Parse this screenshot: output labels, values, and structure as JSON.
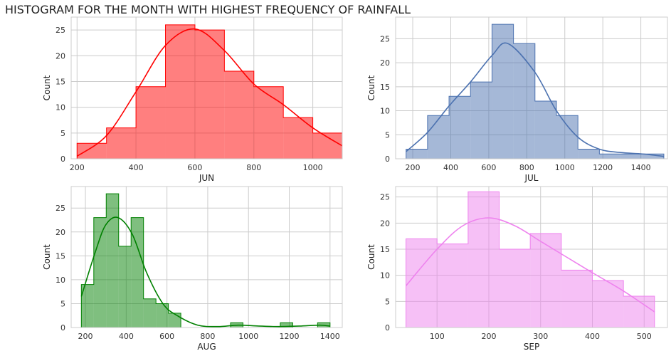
{
  "title": "HISTOGRAM FOR THE MONTH WITH HIGHEST FREQUENCY OF RAINFALL",
  "chart_data": [
    {
      "type": "bar",
      "subtype": "histogram",
      "xlabel": "JUN",
      "ylabel": "Count",
      "color": "#ff0000",
      "xlim": [
        180,
        1100
      ],
      "ylim": [
        0,
        27.5
      ],
      "xticks": [
        200,
        400,
        600,
        800,
        1000
      ],
      "yticks": [
        0,
        5,
        10,
        15,
        20,
        25
      ],
      "bin_edges": [
        200,
        300,
        400,
        500,
        600,
        700,
        800,
        900,
        1000,
        1100
      ],
      "counts": [
        3,
        6,
        14,
        26,
        25,
        17,
        14,
        8,
        5
      ],
      "kde": {
        "x": [
          200,
          300,
          400,
          500,
          600,
          700,
          800,
          900,
          1000,
          1100
        ],
        "y": [
          0.5,
          4.5,
          13,
          22,
          25.2,
          21,
          14.5,
          10.5,
          6,
          2.5
        ]
      },
      "grid": true
    },
    {
      "type": "bar",
      "subtype": "histogram",
      "xlabel": "JUL",
      "ylabel": "Count",
      "color": "#4c72b0",
      "xlim": [
        110,
        1540
      ],
      "ylim": [
        0,
        29.5
      ],
      "xticks": [
        200,
        400,
        600,
        800,
        1000,
        1200,
        1400
      ],
      "yticks": [
        0,
        5,
        10,
        15,
        20,
        25
      ],
      "bin_edges": [
        165,
        278,
        391,
        504,
        617,
        730,
        843,
        956,
        1069,
        1182,
        1295,
        1408,
        1521
      ],
      "counts": [
        2,
        9,
        13,
        16,
        28,
        24,
        12,
        9,
        2,
        1,
        1,
        1
      ],
      "kde": {
        "x": [
          165,
          278,
          391,
          504,
          617,
          700,
          843,
          956,
          1069,
          1182,
          1295,
          1408,
          1521
        ],
        "y": [
          1.5,
          5.5,
          11,
          16,
          21.5,
          24,
          18,
          10,
          4.5,
          2,
          1.3,
          1,
          0.5
        ]
      },
      "grid": true
    },
    {
      "type": "bar",
      "subtype": "histogram",
      "xlabel": "AUG",
      "ylabel": "Count",
      "color": "#008000",
      "xlim": [
        130,
        1460
      ],
      "ylim": [
        0,
        29.5
      ],
      "xticks": [
        200,
        400,
        600,
        800,
        1000,
        1200,
        1400
      ],
      "yticks": [
        0,
        5,
        10,
        15,
        20,
        25
      ],
      "bin_edges": [
        180,
        241,
        302,
        363,
        424,
        485,
        546,
        607,
        668,
        729,
        790,
        851,
        912,
        973,
        1034,
        1095,
        1156,
        1217,
        1278,
        1339,
        1400
      ],
      "counts": [
        9,
        23,
        28,
        17,
        23,
        6,
        5,
        3,
        0,
        0,
        0,
        0,
        1,
        0,
        0,
        0,
        1,
        0,
        0,
        1
      ],
      "kde": {
        "x": [
          180,
          250,
          300,
          360,
          430,
          500,
          580,
          650,
          750,
          850,
          950,
          1050,
          1150,
          1250,
          1350,
          1400
        ],
        "y": [
          6.5,
          16,
          21.5,
          23,
          19.5,
          11.5,
          5,
          2.5,
          0.5,
          0.2,
          0.5,
          0.3,
          0.2,
          0.3,
          0.5,
          0.3
        ]
      },
      "grid": true
    },
    {
      "type": "bar",
      "subtype": "histogram",
      "xlabel": "SEP",
      "ylabel": "Count",
      "color": "#ee82ee",
      "xlim": [
        20,
        545
      ],
      "ylim": [
        0,
        27
      ],
      "xticks": [
        100,
        200,
        300,
        400,
        500
      ],
      "yticks": [
        0,
        5,
        10,
        15,
        20,
        25
      ],
      "bin_edges": [
        40,
        100,
        160,
        220,
        280,
        340,
        400,
        460,
        520
      ],
      "counts": [
        17,
        16,
        26,
        15,
        18,
        11,
        9,
        6
      ],
      "kde": {
        "x": [
          40,
          100,
          150,
          200,
          250,
          300,
          350,
          400,
          460,
          520
        ],
        "y": [
          8,
          15,
          19.5,
          21,
          19.5,
          16.5,
          13.5,
          10.5,
          7,
          3
        ]
      },
      "grid": true
    }
  ]
}
